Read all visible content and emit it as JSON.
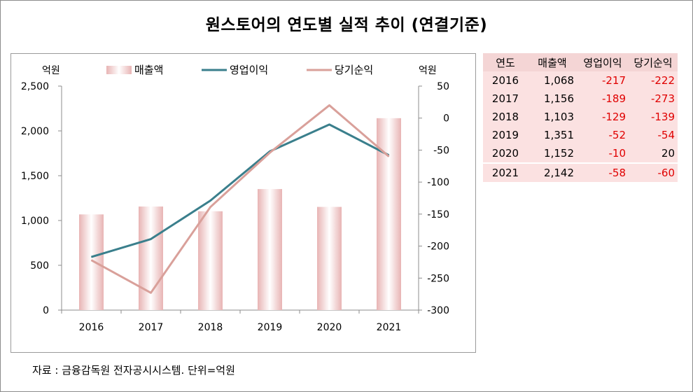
{
  "title": "원스토어의 연도별 실적 추이 (연결기준)",
  "source": "자료 : 금융감독원 전자공시시스템. 단위=억원",
  "chart_data": {
    "type": "bar+line",
    "categories": [
      "2016",
      "2017",
      "2018",
      "2019",
      "2020",
      "2021"
    ],
    "left_axis": {
      "unit": "억원",
      "ylim": [
        0,
        2500
      ],
      "ticks": [
        "0",
        "500",
        "1,000",
        "1,500",
        "2,000",
        "2,500"
      ]
    },
    "right_axis": {
      "unit": "억원",
      "ylim": [
        -300,
        50
      ],
      "ticks": [
        "-300",
        "-250",
        "-200",
        "-150",
        "-100",
        "-50",
        "0",
        "50"
      ]
    },
    "series": [
      {
        "name": "매출액",
        "type": "bar",
        "axis": "left",
        "values": [
          1068,
          1156,
          1103,
          1351,
          1152,
          2142
        ],
        "color": "#e8b4b4"
      },
      {
        "name": "영업이익",
        "type": "line",
        "axis": "right",
        "values": [
          -217,
          -189,
          -129,
          -52,
          -10,
          -58
        ],
        "color": "#3a7f8c"
      },
      {
        "name": "당기순익",
        "type": "line",
        "axis": "right",
        "values": [
          -222,
          -273,
          -139,
          -54,
          20,
          -60
        ],
        "color": "#d9a09a"
      }
    ],
    "legend_position": "top",
    "grid": false
  },
  "table": {
    "headers": [
      "연도",
      "매출액",
      "영업이익",
      "당기순익"
    ],
    "rows": [
      [
        "2016",
        "1,068",
        "-217",
        "-222"
      ],
      [
        "2017",
        "1,156",
        "-189",
        "-273"
      ],
      [
        "2018",
        "1,103",
        "-129",
        "-139"
      ],
      [
        "2019",
        "1,351",
        "-52",
        "-54"
      ],
      [
        "2020",
        "1,152",
        "-10",
        "20"
      ],
      [
        "2021",
        "2,142",
        "-58",
        "-60"
      ]
    ]
  },
  "colors": {
    "bar_gradient_edge": "#e8b4b4",
    "bar_gradient_center": "#ffffff",
    "op_line": "#3a7f8c",
    "net_line": "#d9a09a",
    "negative_text": "#e00000",
    "table_header_bg": "#f4d5d5",
    "table_cell_bg": "#fbe1e1"
  }
}
